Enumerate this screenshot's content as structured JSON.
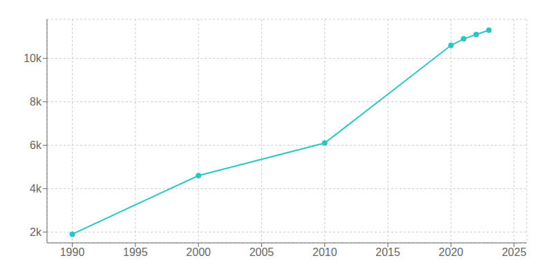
{
  "chart_data": {
    "type": "line",
    "x": [
      1990,
      2000,
      2010,
      2020,
      2021,
      2022,
      2023
    ],
    "values": [
      1900,
      4600,
      6100,
      10600,
      10900,
      11100,
      11300
    ],
    "color": "#2EC4C4",
    "marker": "circle",
    "xlim": [
      1988,
      2026
    ],
    "ylim": [
      1500,
      11800
    ],
    "xticks": [
      1990,
      1995,
      2000,
      2005,
      2010,
      2015,
      2020,
      2025
    ],
    "yticks": [
      {
        "value": 2000,
        "label": "2k"
      },
      {
        "value": 4000,
        "label": "4k"
      },
      {
        "value": 6000,
        "label": "6k"
      },
      {
        "value": 8000,
        "label": "8k"
      },
      {
        "value": 10000,
        "label": "10k"
      }
    ],
    "grid": true
  }
}
